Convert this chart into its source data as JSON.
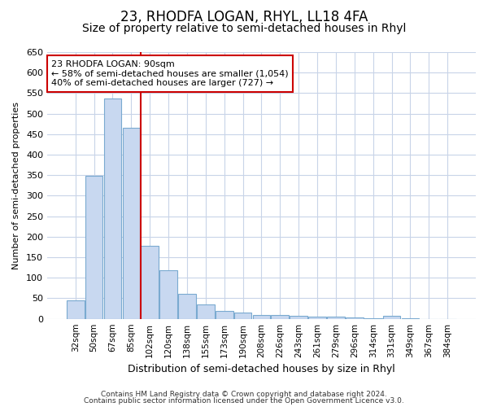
{
  "title": "23, RHODFA LOGAN, RHYL, LL18 4FA",
  "subtitle": "Size of property relative to semi-detached houses in Rhyl",
  "xlabel": "Distribution of semi-detached houses by size in Rhyl",
  "ylabel": "Number of semi-detached properties",
  "categories": [
    "32sqm",
    "50sqm",
    "67sqm",
    "85sqm",
    "102sqm",
    "120sqm",
    "138sqm",
    "155sqm",
    "173sqm",
    "190sqm",
    "208sqm",
    "226sqm",
    "243sqm",
    "261sqm",
    "279sqm",
    "296sqm",
    "314sqm",
    "331sqm",
    "349sqm",
    "367sqm",
    "384sqm"
  ],
  "values": [
    45,
    348,
    537,
    465,
    178,
    118,
    60,
    35,
    20,
    15,
    10,
    10,
    8,
    5,
    5,
    3,
    2,
    8,
    2,
    0,
    0
  ],
  "bar_color": "#c8d8f0",
  "bar_edgecolor": "#7aaad0",
  "vline_x": 3.5,
  "vline_color": "#cc0000",
  "annotation_line1": "23 RHODFA LOGAN: 90sqm",
  "annotation_line2": "← 58% of semi-detached houses are smaller (1,054)",
  "annotation_line3": "40% of semi-detached houses are larger (727) →",
  "annotation_box_edgecolor": "#cc0000",
  "ylim": [
    0,
    650
  ],
  "yticks": [
    0,
    50,
    100,
    150,
    200,
    250,
    300,
    350,
    400,
    450,
    500,
    550,
    600,
    650
  ],
  "footer1": "Contains HM Land Registry data © Crown copyright and database right 2024.",
  "footer2": "Contains public sector information licensed under the Open Government Licence v3.0.",
  "background_color": "#ffffff",
  "plot_background": "#ffffff",
  "title_fontsize": 12,
  "subtitle_fontsize": 10,
  "grid_color": "#c8d4e8"
}
